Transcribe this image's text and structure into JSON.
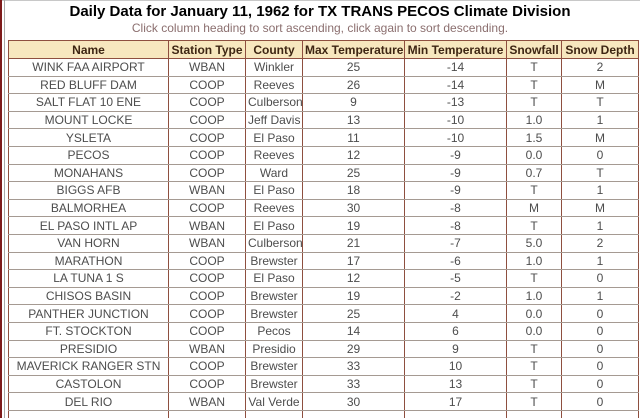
{
  "header": {
    "title": "Daily Data for January 11, 1962 for TX TRANS PECOS Climate Division",
    "subtitle": "Click column heading to sort ascending, click again to sort descending."
  },
  "table": {
    "columns": [
      "Name",
      "Station Type",
      "County",
      "Max Temperature",
      "Min Temperature",
      "Snowfall",
      "Snow Depth"
    ],
    "rows": [
      [
        "WINK FAA AIRPORT",
        "WBAN",
        "Winkler",
        "25",
        "-14",
        "T",
        "2"
      ],
      [
        "RED BLUFF DAM",
        "COOP",
        "Reeves",
        "26",
        "-14",
        "T",
        "M"
      ],
      [
        "SALT FLAT 10 ENE",
        "COOP",
        "Culberson",
        "9",
        "-13",
        "T",
        "T"
      ],
      [
        "MOUNT LOCKE",
        "COOP",
        "Jeff Davis",
        "13",
        "-10",
        "1.0",
        "1"
      ],
      [
        "YSLETA",
        "COOP",
        "El Paso",
        "11",
        "-10",
        "1.5",
        "M"
      ],
      [
        "PECOS",
        "COOP",
        "Reeves",
        "12",
        "-9",
        "0.0",
        "0"
      ],
      [
        "MONAHANS",
        "COOP",
        "Ward",
        "25",
        "-9",
        "0.7",
        "T"
      ],
      [
        "BIGGS AFB",
        "WBAN",
        "El Paso",
        "18",
        "-9",
        "T",
        "1"
      ],
      [
        "BALMORHEA",
        "COOP",
        "Reeves",
        "30",
        "-8",
        "M",
        "M"
      ],
      [
        "EL PASO INTL AP",
        "WBAN",
        "El Paso",
        "19",
        "-8",
        "T",
        "1"
      ],
      [
        "VAN HORN",
        "WBAN",
        "Culberson",
        "21",
        "-7",
        "5.0",
        "2"
      ],
      [
        "MARATHON",
        "COOP",
        "Brewster",
        "17",
        "-6",
        "1.0",
        "1"
      ],
      [
        "LA TUNA 1 S",
        "COOP",
        "El Paso",
        "12",
        "-5",
        "T",
        "0"
      ],
      [
        "CHISOS BASIN",
        "COOP",
        "Brewster",
        "19",
        "-2",
        "1.0",
        "1"
      ],
      [
        "PANTHER JUNCTION",
        "COOP",
        "Brewster",
        "25",
        "4",
        "0.0",
        "0"
      ],
      [
        "FT. STOCKTON",
        "COOP",
        "Pecos",
        "14",
        "6",
        "0.0",
        "0"
      ],
      [
        "PRESIDIO",
        "WBAN",
        "Presidio",
        "29",
        "9",
        "T",
        "0"
      ],
      [
        "MAVERICK RANGER STN",
        "COOP",
        "Brewster",
        "33",
        "10",
        "T",
        "0"
      ],
      [
        "CASTOLON",
        "COOP",
        "Brewster",
        "33",
        "13",
        "T",
        "0"
      ],
      [
        "DEL RIO",
        "WBAN",
        "Val Verde",
        "30",
        "17",
        "T",
        "0"
      ]
    ]
  },
  "colors": {
    "header_bg": "#f7e7be",
    "header_text": "#3e2613",
    "cell_text": "#4d4d4d",
    "border_vertical": "#8e4f3f",
    "border_horizontal": "#a59a92",
    "subtitle_text": "#8b6f6f",
    "frame_left_red": "#7d1a1a",
    "frame_left_gray": "#a9a9a9"
  }
}
